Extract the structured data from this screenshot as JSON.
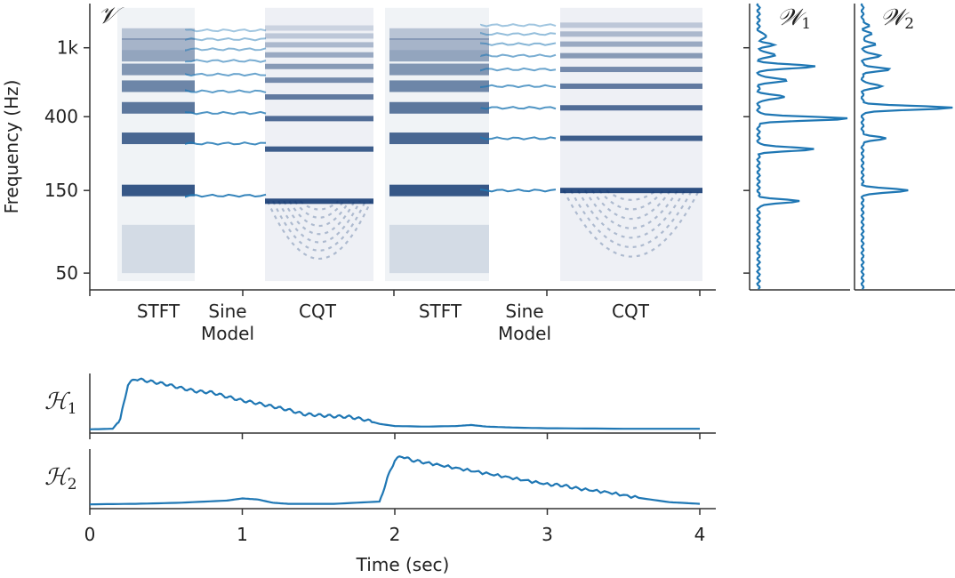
{
  "figure": {
    "y_axis_label": "Frequency (Hz)",
    "x_axis_label": "Time (sec)",
    "panel_labels": {
      "v": "𝒱",
      "w1": "𝒲",
      "w1_sub": "1",
      "w2": "𝒲",
      "w2_sub": "2",
      "h1": "ℋ",
      "h1_sub": "1",
      "h2": "ℋ",
      "h2_sub": "2"
    },
    "colors": {
      "line": "#1f77b4",
      "heat_dark": "#08306b",
      "heat_light": "#deebf7",
      "axis": "#333333"
    }
  },
  "chart_data": [
    {
      "type": "heatmap",
      "name": "V",
      "ylabel": "Frequency (Hz)",
      "yscale": "log",
      "yticks": [
        50,
        150,
        400,
        1000
      ],
      "ytick_labels": [
        "50",
        "150",
        "400",
        "1k"
      ],
      "ylim": [
        40,
        1800
      ],
      "xtick_labels": [
        "STFT",
        "Sine\nModel",
        "CQT",
        "STFT",
        "Sine\nModel",
        "CQT"
      ],
      "blocks": [
        {
          "source": "STFT",
          "note_f0": 150,
          "harmonics": [
            150,
            300,
            450,
            600,
            750,
            900,
            1050,
            1200
          ]
        },
        {
          "source": "Sine Model",
          "note_f0": 140,
          "harmonics": [
            140,
            280,
            420,
            560,
            700,
            840,
            980,
            1120,
            1260
          ]
        },
        {
          "source": "CQT",
          "note_f0": 130,
          "harmonics": [
            130,
            260,
            390,
            520,
            650,
            780,
            910,
            1040,
            1170,
            1300
          ]
        },
        {
          "source": "STFT",
          "note_f0": 150,
          "harmonics": [
            150,
            300,
            450,
            600,
            750,
            900,
            1050,
            1200
          ]
        },
        {
          "source": "Sine Model",
          "note_f0": 150,
          "harmonics": [
            150,
            300,
            450,
            600,
            750,
            900,
            1050,
            1200,
            1350
          ]
        },
        {
          "source": "CQT",
          "note_f0": 150,
          "harmonics": [
            150,
            300,
            450,
            600,
            750,
            900,
            1050,
            1200,
            1350
          ]
        }
      ]
    },
    {
      "type": "line",
      "name": "W1",
      "orientation": "vertical",
      "yscale": "log",
      "ylim": [
        40,
        1800
      ],
      "peaks": [
        {
          "freq": 130,
          "amp": 0.45
        },
        {
          "freq": 260,
          "amp": 0.62
        },
        {
          "freq": 390,
          "amp": 1.0
        },
        {
          "freq": 520,
          "amp": 0.3
        },
        {
          "freq": 650,
          "amp": 0.33
        },
        {
          "freq": 780,
          "amp": 0.65
        },
        {
          "freq": 910,
          "amp": 0.2
        },
        {
          "freq": 1040,
          "amp": 0.16
        },
        {
          "freq": 1170,
          "amp": 0.1
        }
      ],
      "floor": 0.05
    },
    {
      "type": "line",
      "name": "W2",
      "orientation": "vertical",
      "yscale": "log",
      "ylim": [
        40,
        1800
      ],
      "peaks": [
        {
          "freq": 150,
          "amp": 0.52
        },
        {
          "freq": 300,
          "amp": 0.25
        },
        {
          "freq": 450,
          "amp": 1.0
        },
        {
          "freq": 600,
          "amp": 0.22
        },
        {
          "freq": 750,
          "amp": 0.3
        },
        {
          "freq": 900,
          "amp": 0.2
        },
        {
          "freq": 1050,
          "amp": 0.14
        },
        {
          "freq": 1200,
          "amp": 0.1
        },
        {
          "freq": 1350,
          "amp": 0.07
        }
      ],
      "floor": 0.04
    },
    {
      "type": "line",
      "name": "H1",
      "xlabel": "Time (sec)",
      "xlim": [
        0,
        4.1
      ],
      "xticks": [
        0,
        1,
        2,
        3,
        4
      ],
      "x": [
        0,
        0.15,
        0.2,
        0.25,
        0.3,
        0.4,
        0.5,
        0.6,
        0.7,
        0.8,
        0.9,
        1.0,
        1.1,
        1.2,
        1.3,
        1.4,
        1.5,
        1.6,
        1.7,
        1.8,
        1.9,
        2.0,
        2.2,
        2.4,
        2.5,
        2.6,
        2.8,
        3.0,
        3.5,
        4.0
      ],
      "y": [
        0.02,
        0.03,
        0.2,
        0.85,
        0.95,
        0.9,
        0.85,
        0.78,
        0.72,
        0.7,
        0.62,
        0.55,
        0.5,
        0.44,
        0.38,
        0.3,
        0.28,
        0.26,
        0.25,
        0.2,
        0.12,
        0.08,
        0.07,
        0.08,
        0.1,
        0.07,
        0.05,
        0.04,
        0.03,
        0.03
      ]
    },
    {
      "type": "line",
      "name": "H2",
      "xlabel": "Time (sec)",
      "xlim": [
        0,
        4.1
      ],
      "xticks": [
        0,
        1,
        2,
        3,
        4
      ],
      "x": [
        0,
        0.3,
        0.6,
        0.9,
        1.0,
        1.1,
        1.2,
        1.3,
        1.6,
        1.9,
        1.95,
        2.0,
        2.05,
        2.1,
        2.2,
        2.4,
        2.6,
        2.8,
        3.0,
        3.1,
        3.2,
        3.4,
        3.6,
        3.8,
        4.0
      ],
      "y": [
        0.03,
        0.04,
        0.06,
        0.1,
        0.14,
        0.12,
        0.06,
        0.04,
        0.04,
        0.08,
        0.5,
        0.85,
        0.92,
        0.85,
        0.8,
        0.7,
        0.6,
        0.5,
        0.4,
        0.38,
        0.32,
        0.25,
        0.15,
        0.07,
        0.04
      ]
    }
  ]
}
